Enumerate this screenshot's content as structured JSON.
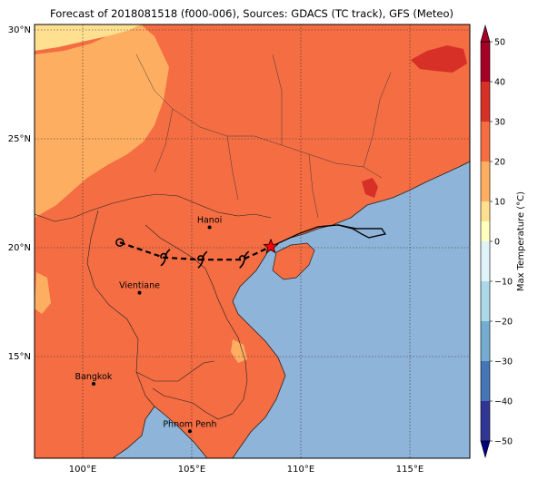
{
  "title": "Forecast of 2018081518 (f000-006), Sources: GDACS (TC track), GFS (Meteo)",
  "map": {
    "lon_ticks": [
      "100°E",
      "105°E",
      "110°E",
      "115°E"
    ],
    "lat_ticks": [
      "30°N",
      "25°N",
      "20°N",
      "15°N"
    ],
    "extent": {
      "lon": [
        97.8,
        117.7
      ],
      "lat": [
        10.3,
        30.4
      ]
    },
    "cities": [
      {
        "name": "Hanoi",
        "lon": 105.8,
        "lat": 21.0
      },
      {
        "name": "Vientiane",
        "lon": 102.6,
        "lat": 17.97
      },
      {
        "name": "Bangkok",
        "lon": 100.5,
        "lat": 13.75
      },
      {
        "name": "Phnom Penh",
        "lon": 104.9,
        "lat": 11.55
      }
    ],
    "track": [
      {
        "lon": 101.7,
        "lat": 20.3,
        "symbol": "circle"
      },
      {
        "lon": 103.7,
        "lat": 19.6,
        "symbol": "cyclone"
      },
      {
        "lon": 105.4,
        "lat": 19.5,
        "symbol": "cyclone"
      },
      {
        "lon": 107.3,
        "lat": 19.5,
        "symbol": "cyclone"
      },
      {
        "lon": 108.6,
        "lat": 20.1,
        "symbol": "star"
      }
    ],
    "colors": {
      "ocean": "#8fb4d9",
      "land_warm": "#f46d43",
      "land_mild": "#fdae61",
      "land_cool": "#fee090",
      "land_hot": "#d73027",
      "track": "#000000",
      "star": "#ff0000"
    }
  },
  "colorbar": {
    "label": "Max Temperature (°C)",
    "ticks": [
      "50",
      "40",
      "30",
      "20",
      "10",
      "0",
      "−10",
      "−20",
      "−30",
      "−40",
      "−50"
    ],
    "levels": [
      {
        "from": 40,
        "to": 50,
        "color": "#a50026"
      },
      {
        "from": 30,
        "to": 40,
        "color": "#d73027"
      },
      {
        "from": 20,
        "to": 30,
        "color": "#f46d43"
      },
      {
        "from": 10,
        "to": 20,
        "color": "#fdae61"
      },
      {
        "from": 5,
        "to": 10,
        "color": "#fee090"
      },
      {
        "from": 0,
        "to": 5,
        "color": "#ffffbf"
      },
      {
        "from": -5,
        "to": 0,
        "color": "#e0f3f8"
      },
      {
        "from": -10,
        "to": -5,
        "color": "#e0f3f8"
      },
      {
        "from": -20,
        "to": -10,
        "color": "#abd9e9"
      },
      {
        "from": -30,
        "to": -20,
        "color": "#74add1"
      },
      {
        "from": -40,
        "to": -30,
        "color": "#4575b4"
      },
      {
        "from": -50,
        "to": -40,
        "color": "#313695"
      }
    ]
  }
}
